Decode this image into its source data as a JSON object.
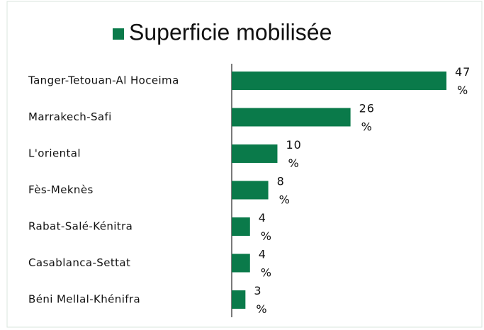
{
  "chart_data": {
    "type": "barh",
    "series": [
      {
        "name": "Superficie mobilisée",
        "color": "#0a7a4a",
        "values": [
          47,
          26,
          10,
          8,
          4,
          4,
          3
        ],
        "value_labels": [
          "47 %",
          "26 %",
          "10 %",
          "8 %",
          "4 %",
          "4 %",
          "3 %"
        ]
      }
    ],
    "categories": [
      "Tanger-Tetouan-Al Hoceima",
      "Marrakech-Safi",
      "L'oriental",
      "Fès-Meknès",
      "Rabat-Salé-Kénitra",
      "Casablanca-Settat",
      "Béni Mellal-Khénifra"
    ],
    "legend": "top"
  }
}
